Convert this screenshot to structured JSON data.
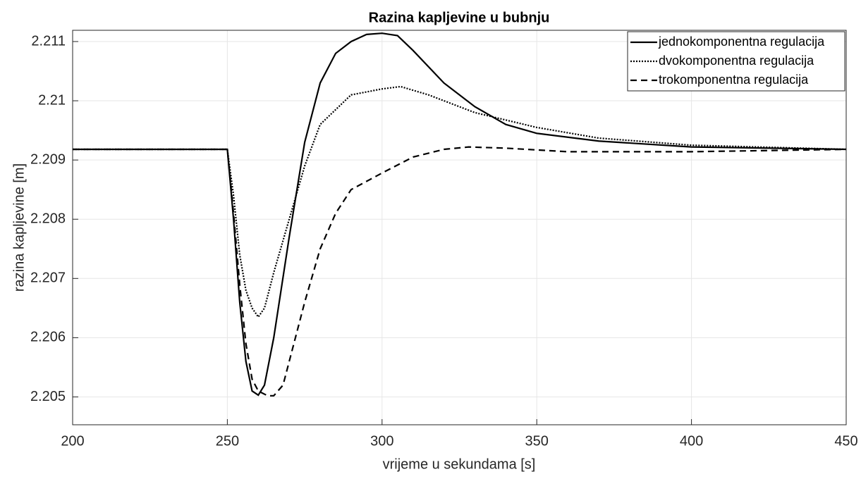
{
  "chart_data": {
    "type": "line",
    "title": "Razina kapljevine u bubnju",
    "xlabel": "vrijeme u sekundama [s]",
    "ylabel": "razina kapljevine [m]",
    "xlim": [
      200,
      450
    ],
    "xticks": [
      200,
      250,
      300,
      350,
      400,
      450
    ],
    "ylim": [
      2.20453,
      2.21119
    ],
    "yticks": [
      2.205,
      2.206,
      2.207,
      2.208,
      2.209,
      2.21,
      2.211
    ],
    "grid": true,
    "legend": "top-right",
    "series": [
      {
        "name": "jednokomponentna regulacija",
        "color": "#000000",
        "style": "solid",
        "x": [
          200,
          250,
          252,
          254,
          256,
          258,
          260,
          262,
          265,
          270,
          275,
          280,
          285,
          290,
          295,
          300,
          305,
          310,
          320,
          330,
          340,
          350,
          370,
          400,
          450
        ],
        "values": [
          2.20918,
          2.20918,
          2.208,
          2.2066,
          2.2056,
          2.2051,
          2.20503,
          2.2052,
          2.206,
          2.2077,
          2.2093,
          2.2103,
          2.2108,
          2.211,
          2.21112,
          2.21114,
          2.2111,
          2.21085,
          2.2103,
          2.2099,
          2.2096,
          2.20945,
          2.20932,
          2.20922,
          2.20918
        ]
      },
      {
        "name": "dvokomponentna regulacija",
        "color": "#000000",
        "style": "dotted",
        "x": [
          200,
          250,
          252,
          254,
          256,
          258,
          260,
          262,
          265,
          270,
          275,
          280,
          290,
          300,
          306,
          315,
          330,
          350,
          370,
          400,
          450
        ],
        "values": [
          2.20918,
          2.20918,
          2.2084,
          2.2074,
          2.2068,
          2.2065,
          2.20635,
          2.2065,
          2.2071,
          2.208,
          2.2089,
          2.2096,
          2.2101,
          2.2102,
          2.21024,
          2.2101,
          2.2098,
          2.20955,
          2.20937,
          2.20925,
          2.20918
        ]
      },
      {
        "name": "trokomponentna regulacija",
        "color": "#000000",
        "style": "dashed",
        "x": [
          200,
          250,
          252,
          254,
          256,
          258,
          260,
          263,
          265,
          268,
          270,
          275,
          280,
          285,
          290,
          300,
          310,
          320,
          328,
          340,
          360,
          400,
          450
        ],
        "values": [
          2.20918,
          2.20918,
          2.2081,
          2.2069,
          2.2059,
          2.2053,
          2.2051,
          2.20502,
          2.20502,
          2.2052,
          2.2056,
          2.2066,
          2.2075,
          2.2081,
          2.2085,
          2.20878,
          2.20905,
          2.20918,
          2.20922,
          2.2092,
          2.20914,
          2.20914,
          2.20918
        ]
      }
    ]
  }
}
